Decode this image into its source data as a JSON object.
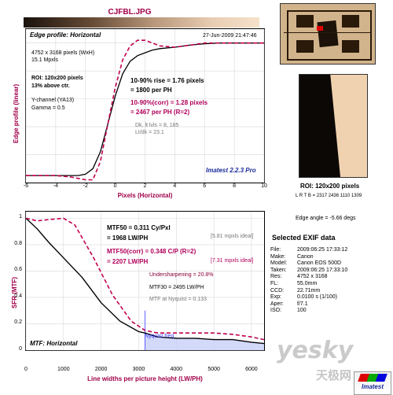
{
  "window_title": "CJFBL.JPG",
  "edge_panel": {
    "title": "Edge profile: Horizontal",
    "date": "27-Jun-2009 21:47:46",
    "info": [
      "4752 x 3168 pixels (WxH)",
      "15.1 Mpxls"
    ],
    "roi": [
      "ROI: 120x200 pixels",
      "13% above ctr."
    ],
    "channel": [
      "Y-channel  (YA13)",
      "Gamma = 0.5"
    ],
    "rise": [
      "10-90% rise = 1.76 pixels",
      "= 1800 per PH"
    ],
    "rise_corr": [
      "10-90%(corr) = 1.28 pixels",
      "= 2467 per PH  (R=2)"
    ],
    "levels": [
      "Dk, lt lvls = 8, 185",
      "Lt/dk = 23.1"
    ],
    "brand": "Imatest 2.2.3 Pro",
    "ylabel": "Edge profile (linear)",
    "xlabel": "Pixels (Horizontal)"
  },
  "mtf_panel": {
    "mtf50": [
      "MTF50 = 0.311 Cy/Pxl",
      "= 1968 LW/PH"
    ],
    "mtf50_ideal": "[5.81 mpxls ideal]",
    "mtf50corr": [
      "MTF50(corr) = 0.348 C/P  (R=2)",
      "= 2207 LW/PH"
    ],
    "mtf50corr_ideal": "[7.31 mpxls ideal]",
    "sharpening": "Undersharpening = 20.8%",
    "mtf30": "MTF30 = 2495 LW/PH",
    "nyquist_val": "MTF at Nyquist = 0.133",
    "nyquist_label": "Nyquist freq.",
    "footer": "MTF: Horizontal",
    "ylabel": "SFR (MTF)",
    "xlabel": "Line widths per picture height (LW/PH)"
  },
  "roi_info": {
    "label": "ROI: 120x200 pixels",
    "lrtb": "L R T B = 2317 2436  1110 1309",
    "edge_angle": "Edge angle = -5.66 degs"
  },
  "exif": {
    "title": "Selected EXIF data",
    "rows": [
      {
        "k": "File:",
        "v": "2009:06:25 17:33:12"
      },
      {
        "k": "Make:",
        "v": "Canon"
      },
      {
        "k": "Model:",
        "v": "Canon EOS 500D"
      },
      {
        "k": "Taken:",
        "v": "2009:06:25 17:33:10"
      },
      {
        "k": "Res:",
        "v": "4752 x 3168"
      },
      {
        "k": "FL:",
        "v": "55.0mm"
      },
      {
        "k": "CCD:",
        "v": "22.71mm"
      },
      {
        "k": "Exp:",
        "v": "0.0100 s  (1/100)"
      },
      {
        "k": "Aper:",
        "v": "f/7.1"
      },
      {
        "k": "ISO:",
        "v": "100"
      }
    ]
  },
  "watermark": {
    "main": "yesky",
    "sub": "天极网",
    "logo": "Imatest"
  },
  "colors": {
    "measured": "#000000",
    "corrected": "#c0004e",
    "nyquist": "#3a3aff",
    "title": "#a0004a"
  },
  "chart_data": [
    {
      "type": "line",
      "title": "Edge profile: Horizontal",
      "xlabel": "Pixels (Horizontal)",
      "ylabel": "Edge profile (linear)",
      "xlim": [
        -6,
        10
      ],
      "xticks": [
        -6,
        -4,
        -2,
        0,
        2,
        4,
        6,
        8,
        10
      ],
      "ylim": [
        0,
        1.1
      ],
      "grid": true,
      "series": [
        {
          "name": "measured",
          "style": "solid",
          "color": "#000000",
          "x": [
            -6,
            -5,
            -4,
            -3,
            -2.5,
            -2,
            -1.5,
            -1,
            -0.5,
            0,
            0.5,
            1,
            1.5,
            2,
            2.5,
            3,
            4,
            5,
            6,
            7,
            8,
            9,
            10
          ],
          "y": [
            0.05,
            0.05,
            0.05,
            0.05,
            0.05,
            0.06,
            0.1,
            0.22,
            0.42,
            0.62,
            0.78,
            0.87,
            0.91,
            0.93,
            0.95,
            0.96,
            0.97,
            0.985,
            0.995,
            1.0,
            1.0,
            1.0,
            1.0
          ]
        },
        {
          "name": "corrected",
          "style": "dashed",
          "color": "#c0004e",
          "x": [
            -6,
            -5,
            -4,
            -3,
            -2.5,
            -2,
            -1.5,
            -1,
            -0.5,
            0,
            0.5,
            1,
            1.5,
            2,
            2.5,
            3,
            4,
            5,
            6,
            7,
            8,
            9,
            10
          ],
          "y": [
            0.05,
            0.05,
            0.05,
            0.04,
            0.03,
            0.02,
            0.02,
            0.15,
            0.42,
            0.68,
            0.88,
            0.98,
            1.02,
            1.02,
            1.0,
            0.98,
            0.97,
            0.985,
            1.0,
            1.0,
            1.0,
            1.0,
            1.0
          ]
        }
      ]
    },
    {
      "type": "line",
      "title": "MTF: Horizontal",
      "xlabel": "Line widths per picture height (LW/PH)",
      "ylabel": "SFR (MTF)",
      "xlim": [
        0,
        6336
      ],
      "xticks": [
        0,
        1000,
        2000,
        3000,
        4000,
        5000,
        6000
      ],
      "ylim": [
        0,
        1.05
      ],
      "yticks": [
        0,
        0.2,
        0.4,
        0.6,
        0.8,
        1
      ],
      "grid": true,
      "nyquist": 3168,
      "series": [
        {
          "name": "measured",
          "style": "solid",
          "color": "#000000",
          "x": [
            0,
            300,
            600,
            1000,
            1500,
            2000,
            2500,
            3000,
            3168,
            3500,
            4000,
            4500,
            5000,
            5500,
            6000,
            6336
          ],
          "y": [
            1.0,
            0.92,
            0.82,
            0.7,
            0.55,
            0.36,
            0.22,
            0.14,
            0.13,
            0.1,
            0.09,
            0.09,
            0.08,
            0.08,
            0.06,
            0.05
          ]
        },
        {
          "name": "corrected",
          "style": "dashed",
          "color": "#c0004e",
          "x": [
            0,
            300,
            600,
            1000,
            1300,
            1800,
            2300,
            2800,
            3168,
            3500,
            4000,
            4500,
            5000,
            5500,
            6000,
            6336
          ],
          "y": [
            1.0,
            0.98,
            0.99,
            1.0,
            0.95,
            0.7,
            0.42,
            0.22,
            0.15,
            0.13,
            0.13,
            0.13,
            0.13,
            0.12,
            0.1,
            0.08
          ]
        }
      ]
    }
  ]
}
